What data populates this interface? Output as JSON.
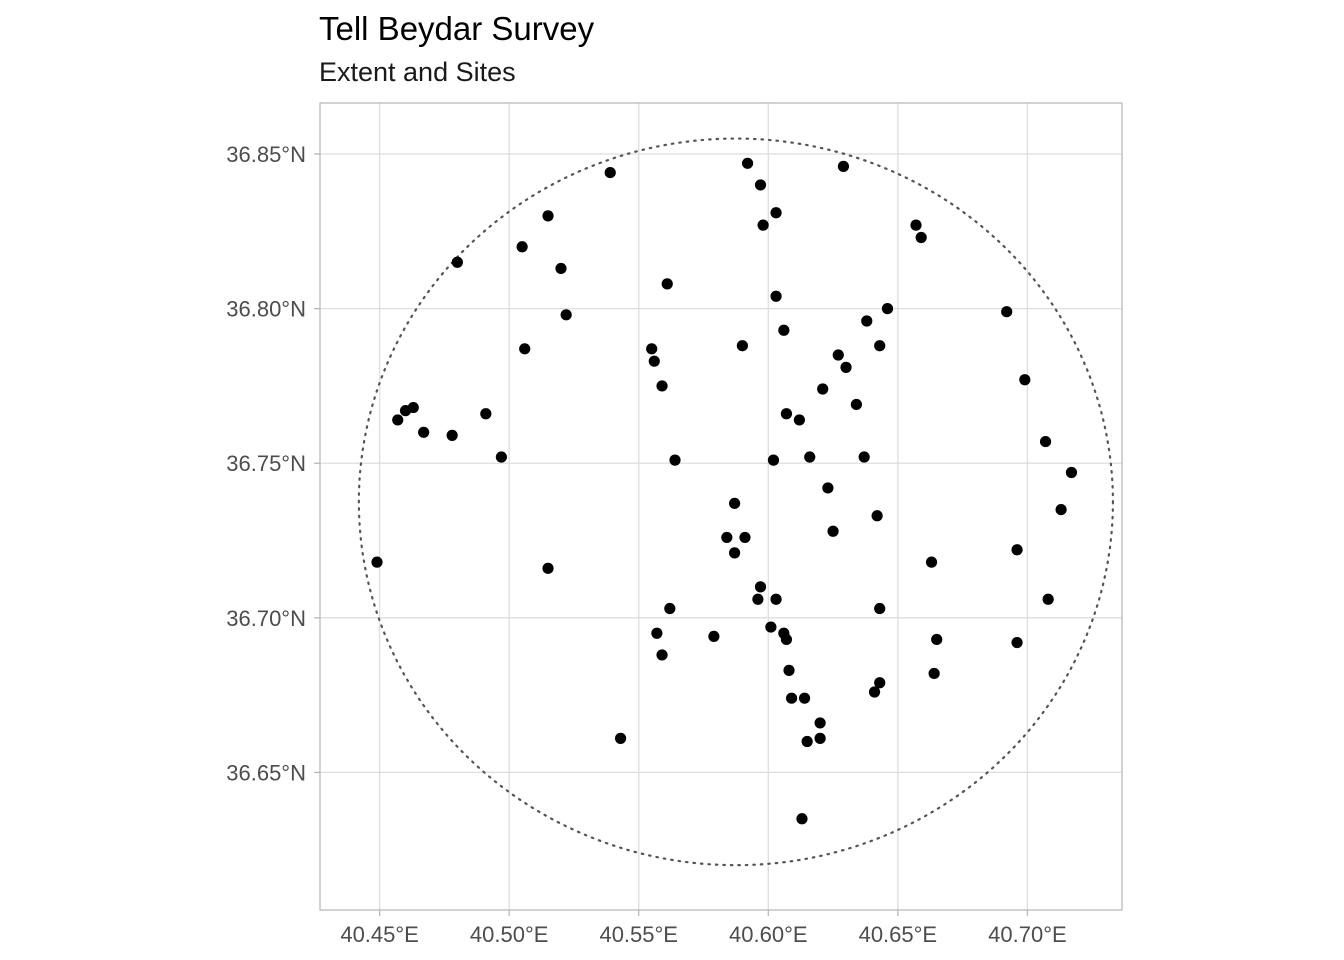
{
  "chart_data": {
    "type": "scatter",
    "title": "Tell Beydar Survey",
    "subtitle": "Extent and Sites",
    "xlabel": "",
    "ylabel": "",
    "xlim": [
      40.427,
      40.7365
    ],
    "ylim": [
      36.6055,
      36.8665
    ],
    "x_ticks": [
      40.45,
      40.5,
      40.55,
      40.6,
      40.65,
      40.7
    ],
    "x_tick_labels": [
      "40.45°E",
      "40.50°E",
      "40.55°E",
      "40.60°E",
      "40.65°E",
      "40.70°E"
    ],
    "y_ticks": [
      36.65,
      36.7,
      36.75,
      36.8,
      36.85
    ],
    "y_tick_labels": [
      "36.65°N",
      "36.70°N",
      "36.75°N",
      "36.80°N",
      "36.85°N"
    ],
    "grid": true,
    "extent_circle": {
      "center": [
        40.5875,
        36.7375
      ],
      "radius_lon": 0.1455,
      "radius_lat": 0.1175,
      "style": "dotted",
      "color": "#555555"
    },
    "point_color": "#000000",
    "points": [
      [
        40.592,
        36.847
      ],
      [
        40.629,
        36.846
      ],
      [
        40.539,
        36.844
      ],
      [
        40.597,
        36.84
      ],
      [
        40.603,
        36.831
      ],
      [
        40.515,
        36.83
      ],
      [
        40.598,
        36.827
      ],
      [
        40.657,
        36.827
      ],
      [
        40.659,
        36.823
      ],
      [
        40.505,
        36.82
      ],
      [
        40.48,
        36.815
      ],
      [
        40.52,
        36.813
      ],
      [
        40.561,
        36.808
      ],
      [
        40.603,
        36.804
      ],
      [
        40.646,
        36.8
      ],
      [
        40.692,
        36.799
      ],
      [
        40.522,
        36.798
      ],
      [
        40.638,
        36.796
      ],
      [
        40.606,
        36.793
      ],
      [
        40.59,
        36.788
      ],
      [
        40.643,
        36.788
      ],
      [
        40.506,
        36.787
      ],
      [
        40.555,
        36.787
      ],
      [
        40.627,
        36.785
      ],
      [
        40.556,
        36.783
      ],
      [
        40.63,
        36.781
      ],
      [
        40.699,
        36.777
      ],
      [
        40.559,
        36.775
      ],
      [
        40.621,
        36.774
      ],
      [
        40.634,
        36.769
      ],
      [
        40.463,
        36.768
      ],
      [
        40.46,
        36.767
      ],
      [
        40.491,
        36.766
      ],
      [
        40.607,
        36.766
      ],
      [
        40.457,
        36.764
      ],
      [
        40.612,
        36.764
      ],
      [
        40.467,
        36.76
      ],
      [
        40.478,
        36.759
      ],
      [
        40.707,
        36.757
      ],
      [
        40.497,
        36.752
      ],
      [
        40.616,
        36.752
      ],
      [
        40.637,
        36.752
      ],
      [
        40.564,
        36.751
      ],
      [
        40.602,
        36.751
      ],
      [
        40.717,
        36.747
      ],
      [
        40.623,
        36.742
      ],
      [
        40.587,
        36.737
      ],
      [
        40.713,
        36.735
      ],
      [
        40.642,
        36.733
      ],
      [
        40.625,
        36.728
      ],
      [
        40.584,
        36.726
      ],
      [
        40.591,
        36.726
      ],
      [
        40.696,
        36.722
      ],
      [
        40.587,
        36.721
      ],
      [
        40.449,
        36.718
      ],
      [
        40.663,
        36.718
      ],
      [
        40.515,
        36.716
      ],
      [
        40.597,
        36.71
      ],
      [
        40.596,
        36.706
      ],
      [
        40.603,
        36.706
      ],
      [
        40.708,
        36.706
      ],
      [
        40.562,
        36.703
      ],
      [
        40.643,
        36.703
      ],
      [
        40.601,
        36.697
      ],
      [
        40.606,
        36.695
      ],
      [
        40.557,
        36.695
      ],
      [
        40.579,
        36.694
      ],
      [
        40.607,
        36.693
      ],
      [
        40.665,
        36.693
      ],
      [
        40.696,
        36.692
      ],
      [
        40.559,
        36.688
      ],
      [
        40.608,
        36.683
      ],
      [
        40.664,
        36.682
      ],
      [
        40.643,
        36.679
      ],
      [
        40.641,
        36.676
      ],
      [
        40.609,
        36.674
      ],
      [
        40.614,
        36.674
      ],
      [
        40.62,
        36.666
      ],
      [
        40.543,
        36.661
      ],
      [
        40.62,
        36.661
      ],
      [
        40.615,
        36.66
      ],
      [
        40.613,
        36.635
      ]
    ]
  }
}
